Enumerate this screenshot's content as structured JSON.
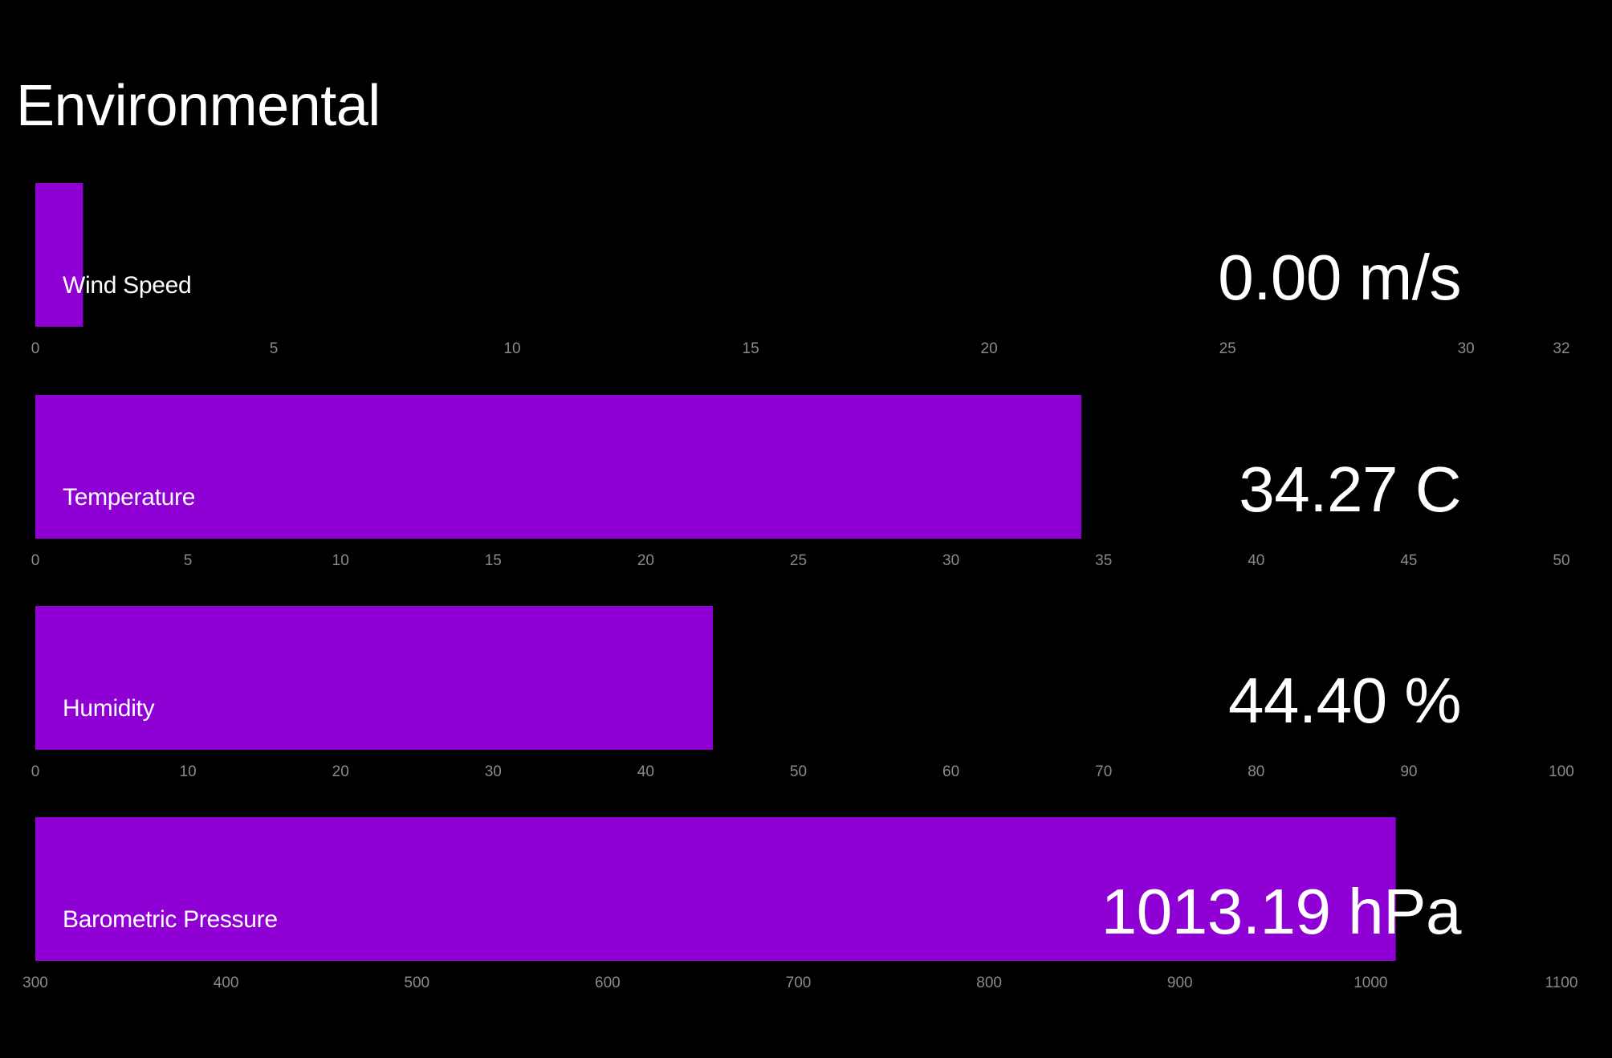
{
  "page": {
    "title": "Environmental"
  },
  "colors": {
    "background": "#000000",
    "bar": "#8e00d4",
    "text": "#ffffff",
    "tick": "#8a8a8a"
  },
  "gauges": [
    {
      "label": "Wind Speed",
      "value_text": "0.00 m/s",
      "ticks": [
        "0",
        "5",
        "10",
        "15",
        "20",
        "25",
        "30",
        "32"
      ]
    },
    {
      "label": "Temperature",
      "value_text": "34.27 C",
      "ticks": [
        "0",
        "5",
        "10",
        "15",
        "20",
        "25",
        "30",
        "35",
        "40",
        "45",
        "50"
      ]
    },
    {
      "label": "Humidity",
      "value_text": "44.40 %",
      "ticks": [
        "0",
        "10",
        "20",
        "30",
        "40",
        "50",
        "60",
        "70",
        "80",
        "90",
        "100"
      ]
    },
    {
      "label": "Barometric Pressure",
      "value_text": "1013.19 hPa",
      "ticks": [
        "300",
        "400",
        "500",
        "600",
        "700",
        "800",
        "900",
        "1000",
        "1100"
      ]
    }
  ],
  "chart_data": {
    "type": "bar",
    "orientation": "horizontal",
    "title": "Environmental",
    "categories": [
      "Wind Speed",
      "Temperature",
      "Humidity",
      "Barometric Pressure"
    ],
    "units": [
      "m/s",
      "C",
      "%",
      "hPa"
    ],
    "values": [
      0.0,
      34.27,
      44.4,
      1013.19
    ],
    "bar_display_values": [
      1.0,
      34.27,
      44.4,
      1013.19
    ],
    "axes": [
      {
        "min": 0,
        "max": 32,
        "ticks": [
          0,
          5,
          10,
          15,
          20,
          25,
          30,
          32
        ]
      },
      {
        "min": 0,
        "max": 50,
        "ticks": [
          0,
          5,
          10,
          15,
          20,
          25,
          30,
          35,
          40,
          45,
          50
        ]
      },
      {
        "min": 0,
        "max": 100,
        "ticks": [
          0,
          10,
          20,
          30,
          40,
          50,
          60,
          70,
          80,
          90,
          100
        ]
      },
      {
        "min": 300,
        "max": 1100,
        "ticks": [
          300,
          400,
          500,
          600,
          700,
          800,
          900,
          1000,
          1100
        ]
      }
    ],
    "grid": false,
    "legend": "none"
  }
}
